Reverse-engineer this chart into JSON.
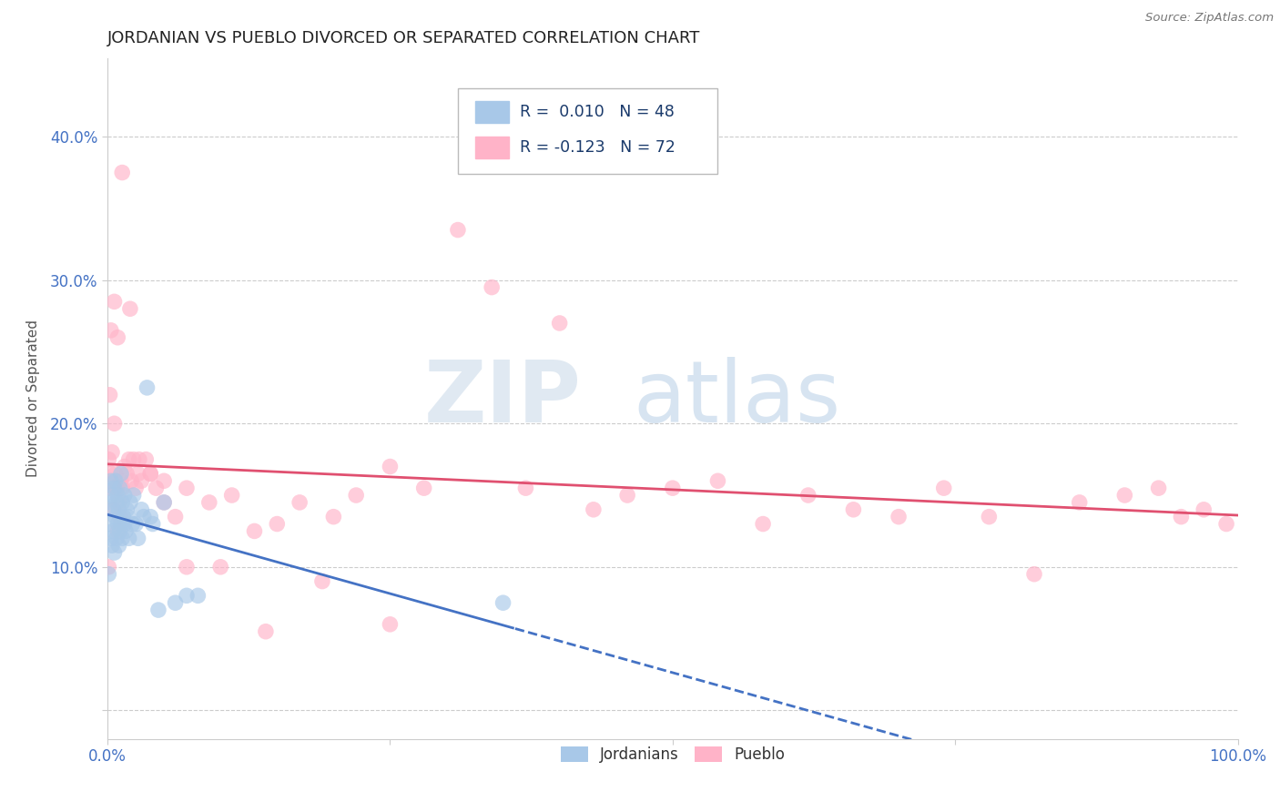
{
  "title": "JORDANIAN VS PUEBLO DIVORCED OR SEPARATED CORRELATION CHART",
  "source": "Source: ZipAtlas.com",
  "ylabel": "Divorced or Separated",
  "legend_label1": "Jordanians",
  "legend_label2": "Pueblo",
  "R1": 0.01,
  "N1": 48,
  "R2": -0.123,
  "N2": 72,
  "color_blue": "#a8c8e8",
  "color_pink": "#ffb3c8",
  "line_blue": "#4472c4",
  "line_pink": "#e05070",
  "legend_text_color": "#1a3a6b",
  "watermark_zip": "ZIP",
  "watermark_atlas": "atlas",
  "xlim": [
    0.0,
    1.0
  ],
  "ylim": [
    -0.02,
    0.455
  ],
  "xtick_vals": [
    0.0,
    0.25,
    0.5,
    0.75,
    1.0
  ],
  "xtick_labels": [
    "0.0%",
    "",
    "",
    "",
    "100.0%"
  ],
  "ytick_vals": [
    0.0,
    0.1,
    0.2,
    0.3,
    0.4
  ],
  "ytick_labels": [
    "",
    "10.0%",
    "20.0%",
    "30.0%",
    "40.0%"
  ],
  "blue_x": [
    0.001,
    0.002,
    0.003,
    0.003,
    0.004,
    0.004,
    0.005,
    0.005,
    0.006,
    0.006,
    0.007,
    0.007,
    0.008,
    0.008,
    0.009,
    0.009,
    0.01,
    0.01,
    0.011,
    0.011,
    0.012,
    0.012,
    0.013,
    0.013,
    0.014,
    0.015,
    0.015,
    0.016,
    0.017,
    0.018,
    0.019,
    0.02,
    0.022,
    0.023,
    0.025,
    0.027,
    0.03,
    0.032,
    0.035,
    0.038,
    0.04,
    0.045,
    0.05,
    0.06,
    0.07,
    0.08,
    0.35,
    0.001
  ],
  "blue_y": [
    0.13,
    0.145,
    0.12,
    0.16,
    0.115,
    0.15,
    0.125,
    0.14,
    0.11,
    0.155,
    0.135,
    0.16,
    0.12,
    0.145,
    0.13,
    0.15,
    0.115,
    0.14,
    0.125,
    0.155,
    0.13,
    0.165,
    0.12,
    0.145,
    0.135,
    0.13,
    0.15,
    0.125,
    0.14,
    0.135,
    0.12,
    0.145,
    0.13,
    0.15,
    0.13,
    0.12,
    0.14,
    0.135,
    0.225,
    0.135,
    0.13,
    0.07,
    0.145,
    0.075,
    0.08,
    0.08,
    0.075,
    0.095
  ],
  "pink_x": [
    0.001,
    0.002,
    0.002,
    0.003,
    0.004,
    0.005,
    0.006,
    0.007,
    0.008,
    0.009,
    0.01,
    0.011,
    0.012,
    0.013,
    0.015,
    0.017,
    0.019,
    0.021,
    0.023,
    0.025,
    0.027,
    0.03,
    0.034,
    0.038,
    0.043,
    0.05,
    0.06,
    0.07,
    0.09,
    0.11,
    0.13,
    0.15,
    0.17,
    0.2,
    0.22,
    0.25,
    0.28,
    0.31,
    0.34,
    0.37,
    0.4,
    0.43,
    0.46,
    0.5,
    0.54,
    0.58,
    0.62,
    0.66,
    0.7,
    0.74,
    0.78,
    0.82,
    0.86,
    0.9,
    0.93,
    0.95,
    0.97,
    0.99,
    0.001,
    0.003,
    0.006,
    0.009,
    0.013,
    0.02,
    0.028,
    0.038,
    0.05,
    0.07,
    0.1,
    0.14,
    0.19,
    0.25
  ],
  "pink_y": [
    0.175,
    0.155,
    0.22,
    0.165,
    0.18,
    0.14,
    0.2,
    0.165,
    0.155,
    0.125,
    0.145,
    0.135,
    0.16,
    0.155,
    0.17,
    0.165,
    0.175,
    0.16,
    0.175,
    0.155,
    0.165,
    0.16,
    0.175,
    0.165,
    0.155,
    0.145,
    0.135,
    0.155,
    0.145,
    0.15,
    0.125,
    0.13,
    0.145,
    0.135,
    0.15,
    0.17,
    0.155,
    0.335,
    0.295,
    0.155,
    0.27,
    0.14,
    0.15,
    0.155,
    0.16,
    0.13,
    0.15,
    0.14,
    0.135,
    0.155,
    0.135,
    0.095,
    0.145,
    0.15,
    0.155,
    0.135,
    0.14,
    0.13,
    0.1,
    0.265,
    0.285,
    0.26,
    0.375,
    0.28,
    0.175,
    0.165,
    0.16,
    0.1,
    0.1,
    0.055,
    0.09,
    0.06
  ]
}
